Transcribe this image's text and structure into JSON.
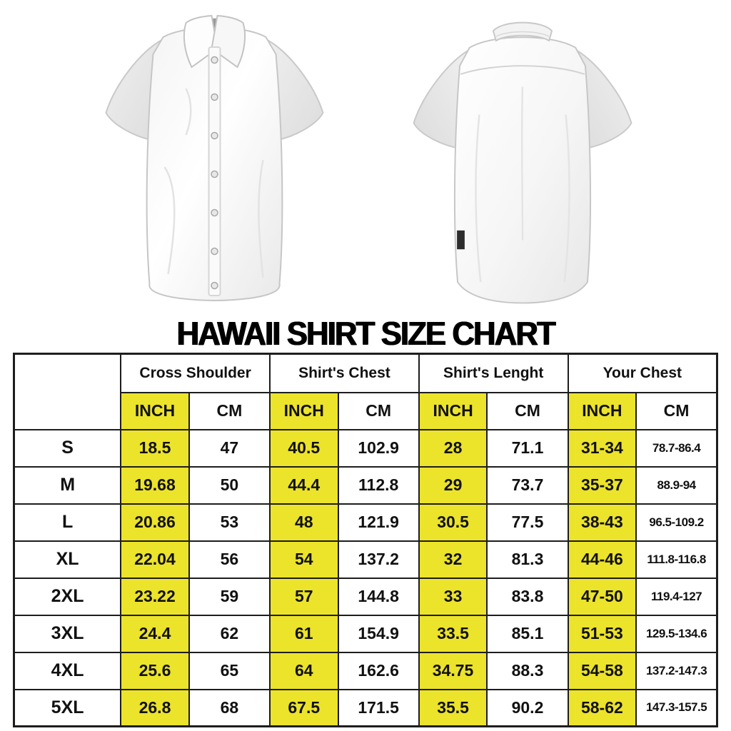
{
  "page_title": "HAWAII SHIRT SIZE CHART",
  "table": {
    "corner": "",
    "groups": [
      "Cross Shoulder",
      "Shirt's Chest",
      "Shirt's Lenght",
      "Your Chest"
    ],
    "units": {
      "inch": "INCH",
      "cm": "CM"
    },
    "rows": [
      {
        "size": "S",
        "values": [
          "18.5",
          "47",
          "40.5",
          "102.9",
          "28",
          "71.1",
          "31-34",
          "78.7-86.4"
        ]
      },
      {
        "size": "M",
        "values": [
          "19.68",
          "50",
          "44.4",
          "112.8",
          "29",
          "73.7",
          "35-37",
          "88.9-94"
        ]
      },
      {
        "size": "L",
        "values": [
          "20.86",
          "53",
          "48",
          "121.9",
          "30.5",
          "77.5",
          "38-43",
          "96.5-109.2"
        ]
      },
      {
        "size": "XL",
        "values": [
          "22.04",
          "56",
          "54",
          "137.2",
          "32",
          "81.3",
          "44-46",
          "111.8-116.8"
        ]
      },
      {
        "size": "2XL",
        "values": [
          "23.22",
          "59",
          "57",
          "144.8",
          "33",
          "83.8",
          "47-50",
          "119.4-127"
        ]
      },
      {
        "size": "3XL",
        "values": [
          "24.4",
          "62",
          "61",
          "154.9",
          "33.5",
          "85.1",
          "51-53",
          "129.5-134.6"
        ]
      },
      {
        "size": "4XL",
        "values": [
          "25.6",
          "65",
          "64",
          "162.6",
          "34.75",
          "88.3",
          "54-58",
          "137.2-147.3"
        ]
      },
      {
        "size": "5XL",
        "values": [
          "26.8",
          "68",
          "67.5",
          "171.5",
          "35.5",
          "90.2",
          "58-62",
          "147.3-157.5"
        ]
      }
    ]
  },
  "colors": {
    "highlight_yellow": "#ece32b",
    "border_dark": "#1d1d1d",
    "text_black": "#111111"
  }
}
